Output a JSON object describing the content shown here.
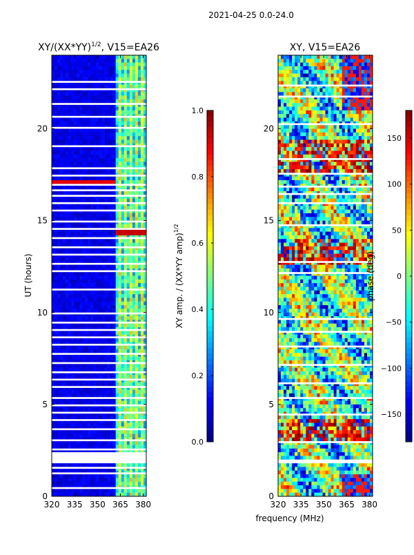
{
  "suptitle": "2021-04-25 0.0-24.0",
  "colors": {
    "jet": [
      "#00007f",
      "#0000ff",
      "#007fff",
      "#00ffff",
      "#7fff7f",
      "#ffff00",
      "#ff7f00",
      "#ff0000",
      "#7f0000"
    ],
    "blank": "#ffffff"
  },
  "chart_data": [
    {
      "type": "heatmap",
      "title_main": "XY/(XX*YY)",
      "title_sup": "1/2",
      "title_tail": ", V15=EA26",
      "ylabel": "UT (hours)",
      "xlabel": "",
      "xlim": [
        320,
        382
      ],
      "ylim": [
        0,
        24
      ],
      "xticks": [
        "320",
        "335",
        "350",
        "365",
        "380"
      ],
      "xtick_values": [
        320,
        335,
        350,
        365,
        380
      ],
      "yticks": [
        "0",
        "5",
        "10",
        "15",
        "20"
      ],
      "ytick_values": [
        0,
        5,
        10,
        15,
        20
      ],
      "value_range": [
        0.0,
        1.0
      ],
      "colorbar": {
        "label": "XY amp. / (XX*YY amp)",
        "label_sup": "1/2",
        "ticks": [
          "0.0",
          "0.2",
          "0.4",
          "0.6",
          "0.8",
          "1.0"
        ],
        "tick_values": [
          0.0,
          0.2,
          0.4,
          0.6,
          0.8,
          1.0
        ],
        "range": [
          0.0,
          1.0
        ]
      },
      "flagged_hours": [
        [
          0.4,
          0.5
        ],
        [
          1.2,
          1.3
        ],
        [
          1.5,
          1.6
        ],
        [
          1.8,
          2.4
        ],
        [
          2.5,
          2.6
        ],
        [
          3.0,
          3.1
        ],
        [
          3.6,
          3.7
        ],
        [
          4.1,
          4.2
        ],
        [
          4.5,
          4.6
        ],
        [
          4.9,
          5.0
        ],
        [
          5.3,
          5.4
        ],
        [
          5.9,
          6.0
        ],
        [
          6.3,
          6.4
        ],
        [
          6.7,
          6.8
        ],
        [
          7.2,
          7.3
        ],
        [
          7.7,
          7.8
        ],
        [
          8.2,
          8.3
        ],
        [
          8.6,
          8.7
        ],
        [
          9.0,
          9.1
        ],
        [
          9.4,
          9.5
        ],
        [
          9.9,
          10.0
        ],
        [
          11.2,
          11.3
        ],
        [
          12.2,
          12.3
        ],
        [
          12.6,
          12.7
        ],
        [
          13.1,
          13.2
        ],
        [
          13.5,
          13.6
        ],
        [
          14.0,
          14.1
        ],
        [
          14.5,
          14.6
        ],
        [
          14.9,
          15.0
        ],
        [
          15.5,
          15.6
        ],
        [
          15.9,
          16.0
        ],
        [
          16.3,
          16.4
        ],
        [
          16.6,
          16.7
        ],
        [
          16.9,
          17.0
        ],
        [
          17.4,
          17.5
        ],
        [
          17.8,
          17.9
        ],
        [
          19.0,
          19.1
        ],
        [
          20.0,
          20.1
        ],
        [
          20.6,
          20.7
        ],
        [
          21.3,
          21.4
        ],
        [
          22.1,
          22.2
        ],
        [
          22.5,
          22.6
        ]
      ]
    },
    {
      "type": "heatmap",
      "title_main": "XY, V15=EA26",
      "title_sup": "",
      "title_tail": "",
      "ylabel": "",
      "xlabel": "frequency (MHz)",
      "xlim": [
        320,
        382
      ],
      "ylim": [
        0,
        24
      ],
      "xticks": [
        "320",
        "335",
        "350",
        "365",
        "380"
      ],
      "xtick_values": [
        320,
        335,
        350,
        365,
        380
      ],
      "yticks": [
        "0",
        "5",
        "10",
        "15",
        "20"
      ],
      "ytick_values": [
        0,
        5,
        10,
        15,
        20
      ],
      "value_range": [
        -180,
        180
      ],
      "colorbar": {
        "label": "phase (deg)",
        "label_sup": "",
        "ticks": [
          "−150",
          "−100",
          "−50",
          "0",
          "50",
          "100",
          "150"
        ],
        "tick_values": [
          -150,
          -100,
          -50,
          0,
          50,
          100,
          150
        ],
        "range": [
          -180,
          180
        ]
      },
      "flagged_hours": [
        [
          1.8,
          2.0
        ],
        [
          2.9,
          3.0
        ],
        [
          4.4,
          4.5
        ],
        [
          5.3,
          5.4
        ],
        [
          6.1,
          6.2
        ],
        [
          7.1,
          7.2
        ],
        [
          8.1,
          8.2
        ],
        [
          8.9,
          9.0
        ],
        [
          9.6,
          9.7
        ],
        [
          12.1,
          12.2
        ],
        [
          12.7,
          12.8
        ],
        [
          14.7,
          14.8
        ],
        [
          15.9,
          16.0
        ],
        [
          16.4,
          16.5
        ],
        [
          16.8,
          16.9
        ],
        [
          17.5,
          17.6
        ],
        [
          18.3,
          18.4
        ],
        [
          20.2,
          20.3
        ],
        [
          21.7,
          21.8
        ],
        [
          22.3,
          22.4
        ]
      ]
    }
  ]
}
